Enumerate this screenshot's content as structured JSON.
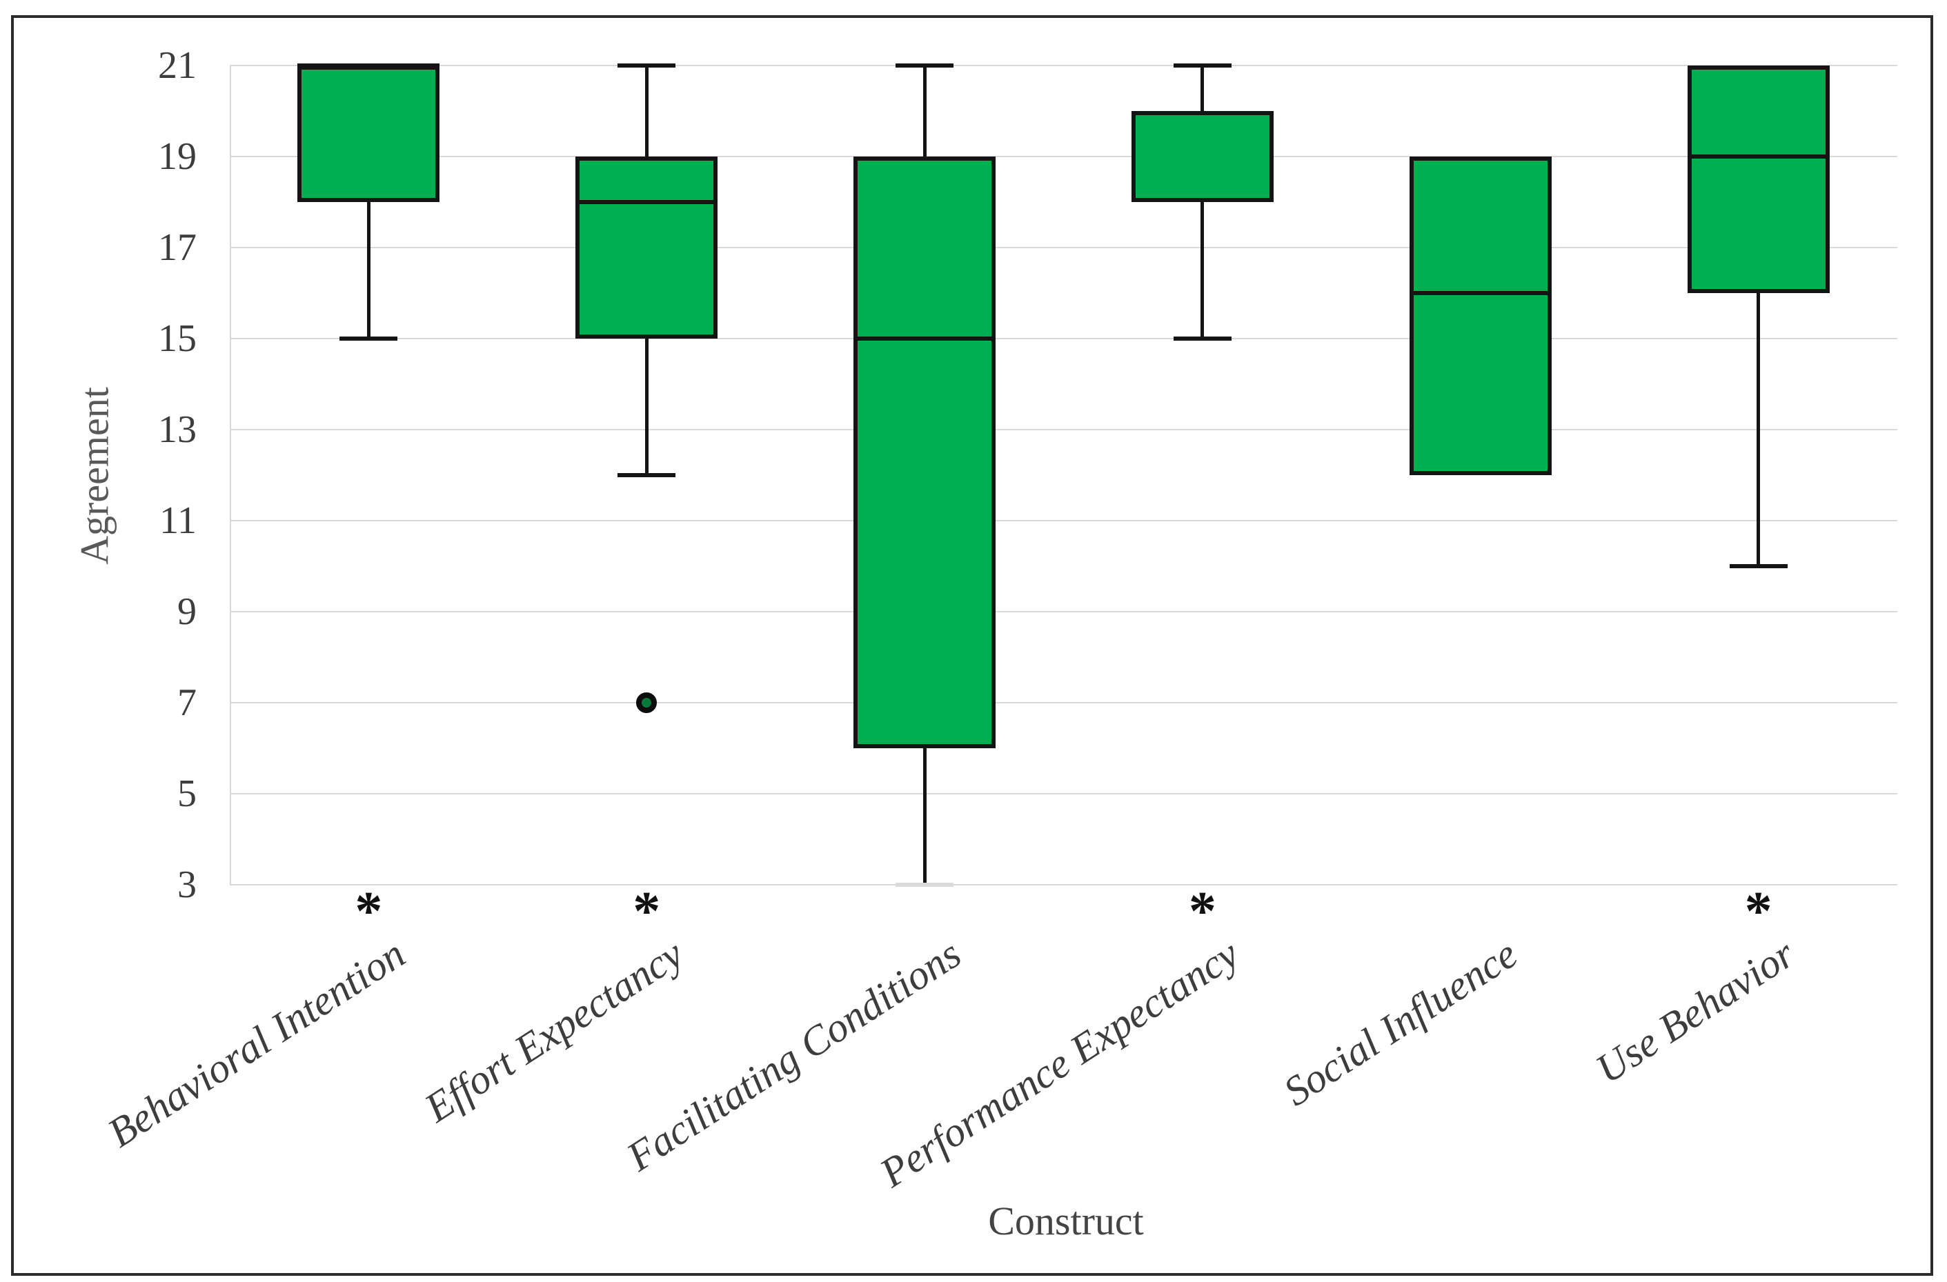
{
  "figure": {
    "type": "boxplot-figure",
    "background": "#ffffff",
    "frame_color": "#2b2b2b"
  },
  "chart_data": {
    "type": "box",
    "xlabel": "Construct",
    "ylabel": "Agreement",
    "ylim": [
      3,
      21
    ],
    "yticks": [
      21,
      19,
      17,
      15,
      13,
      11,
      9,
      7,
      5,
      3
    ],
    "grid": "horizontal",
    "box_fill": "#00B050",
    "box_stroke": "#141414",
    "gridline_color": "#d9d9d9",
    "outlier_fill": "#0a7a3a",
    "significance_marker": "*",
    "categories": [
      "Behavioral Intention",
      "Effort Expectancy",
      "Facilitating Conditions",
      "Performance Expectancy",
      "Social Influence",
      "Use Behavior"
    ],
    "series": [
      {
        "label": "Behavioral Intention",
        "q1": 18,
        "median": 21,
        "q3": 21,
        "whisker_low": 15,
        "whisker_high": 21,
        "outliers": [],
        "significant": true
      },
      {
        "label": "Effort Expectancy",
        "q1": 15,
        "median": 18,
        "q3": 19,
        "whisker_low": 12,
        "whisker_high": 21,
        "outliers": [
          7
        ],
        "significant": true
      },
      {
        "label": "Facilitating Conditions",
        "q1": 6,
        "median": 15,
        "q3": 19,
        "whisker_low": 3,
        "whisker_high": 21,
        "outliers": [],
        "significant": false
      },
      {
        "label": "Performance Expectancy",
        "q1": 18,
        "median": null,
        "q3": 20,
        "whisker_low": 15,
        "whisker_high": 21,
        "outliers": [],
        "significant": true
      },
      {
        "label": "Social Influence",
        "q1": 12,
        "median": 16,
        "q3": 19,
        "whisker_low": 12,
        "whisker_high": 19,
        "outliers": [],
        "significant": false
      },
      {
        "label": "Use Behavior",
        "q1": 16,
        "median": 19,
        "q3": 21,
        "whisker_low": 10,
        "whisker_high": 21,
        "outliers": [],
        "significant": true
      }
    ]
  }
}
